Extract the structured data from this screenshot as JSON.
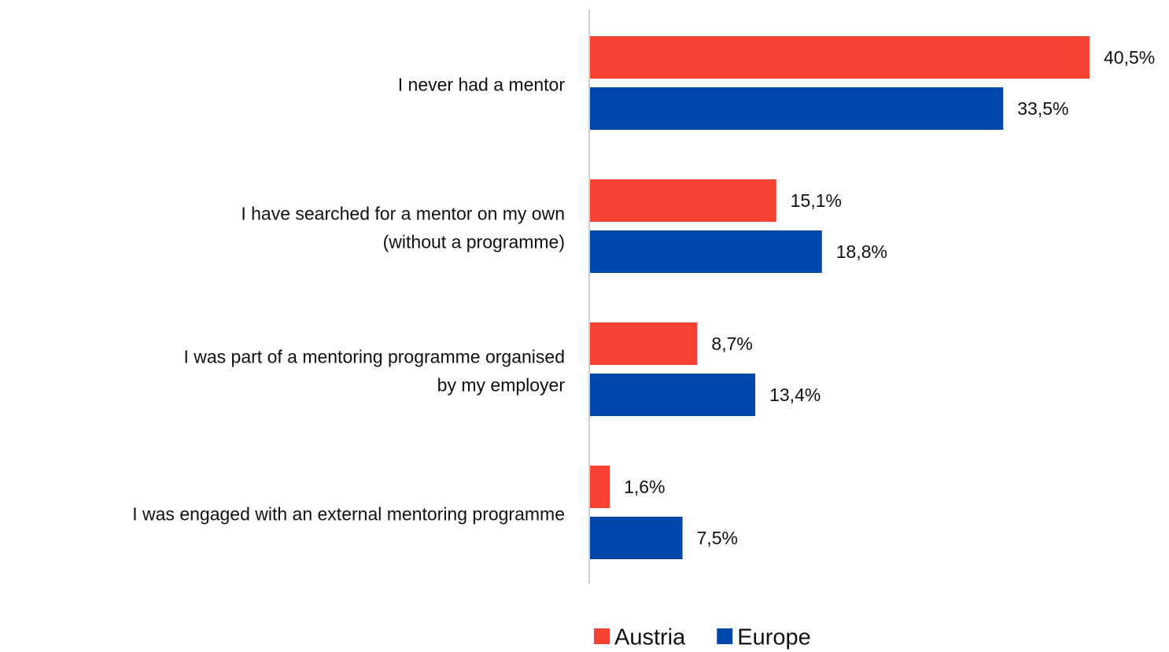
{
  "chart_data": {
    "type": "bar",
    "orientation": "horizontal",
    "categories": [
      "I never had a mentor",
      "I have searched for a mentor on my own\n(without a programme)",
      "I was part of a mentoring programme organised\nby my employer",
      "I was engaged with an external mentoring programme"
    ],
    "series": [
      {
        "name": "Austria",
        "color": "#f44131",
        "values": [
          40.5,
          15.1,
          8.7,
          1.6
        ],
        "value_labels": [
          "40,5%",
          "15,1%",
          "8,7%",
          "1,6%"
        ]
      },
      {
        "name": "Europe",
        "color": "#0047ab",
        "values": [
          33.5,
          18.8,
          13.4,
          7.5
        ],
        "value_labels": [
          "33,5%",
          "18,8%",
          "13,4%",
          "7,5%"
        ]
      }
    ],
    "legend": "bottom"
  }
}
